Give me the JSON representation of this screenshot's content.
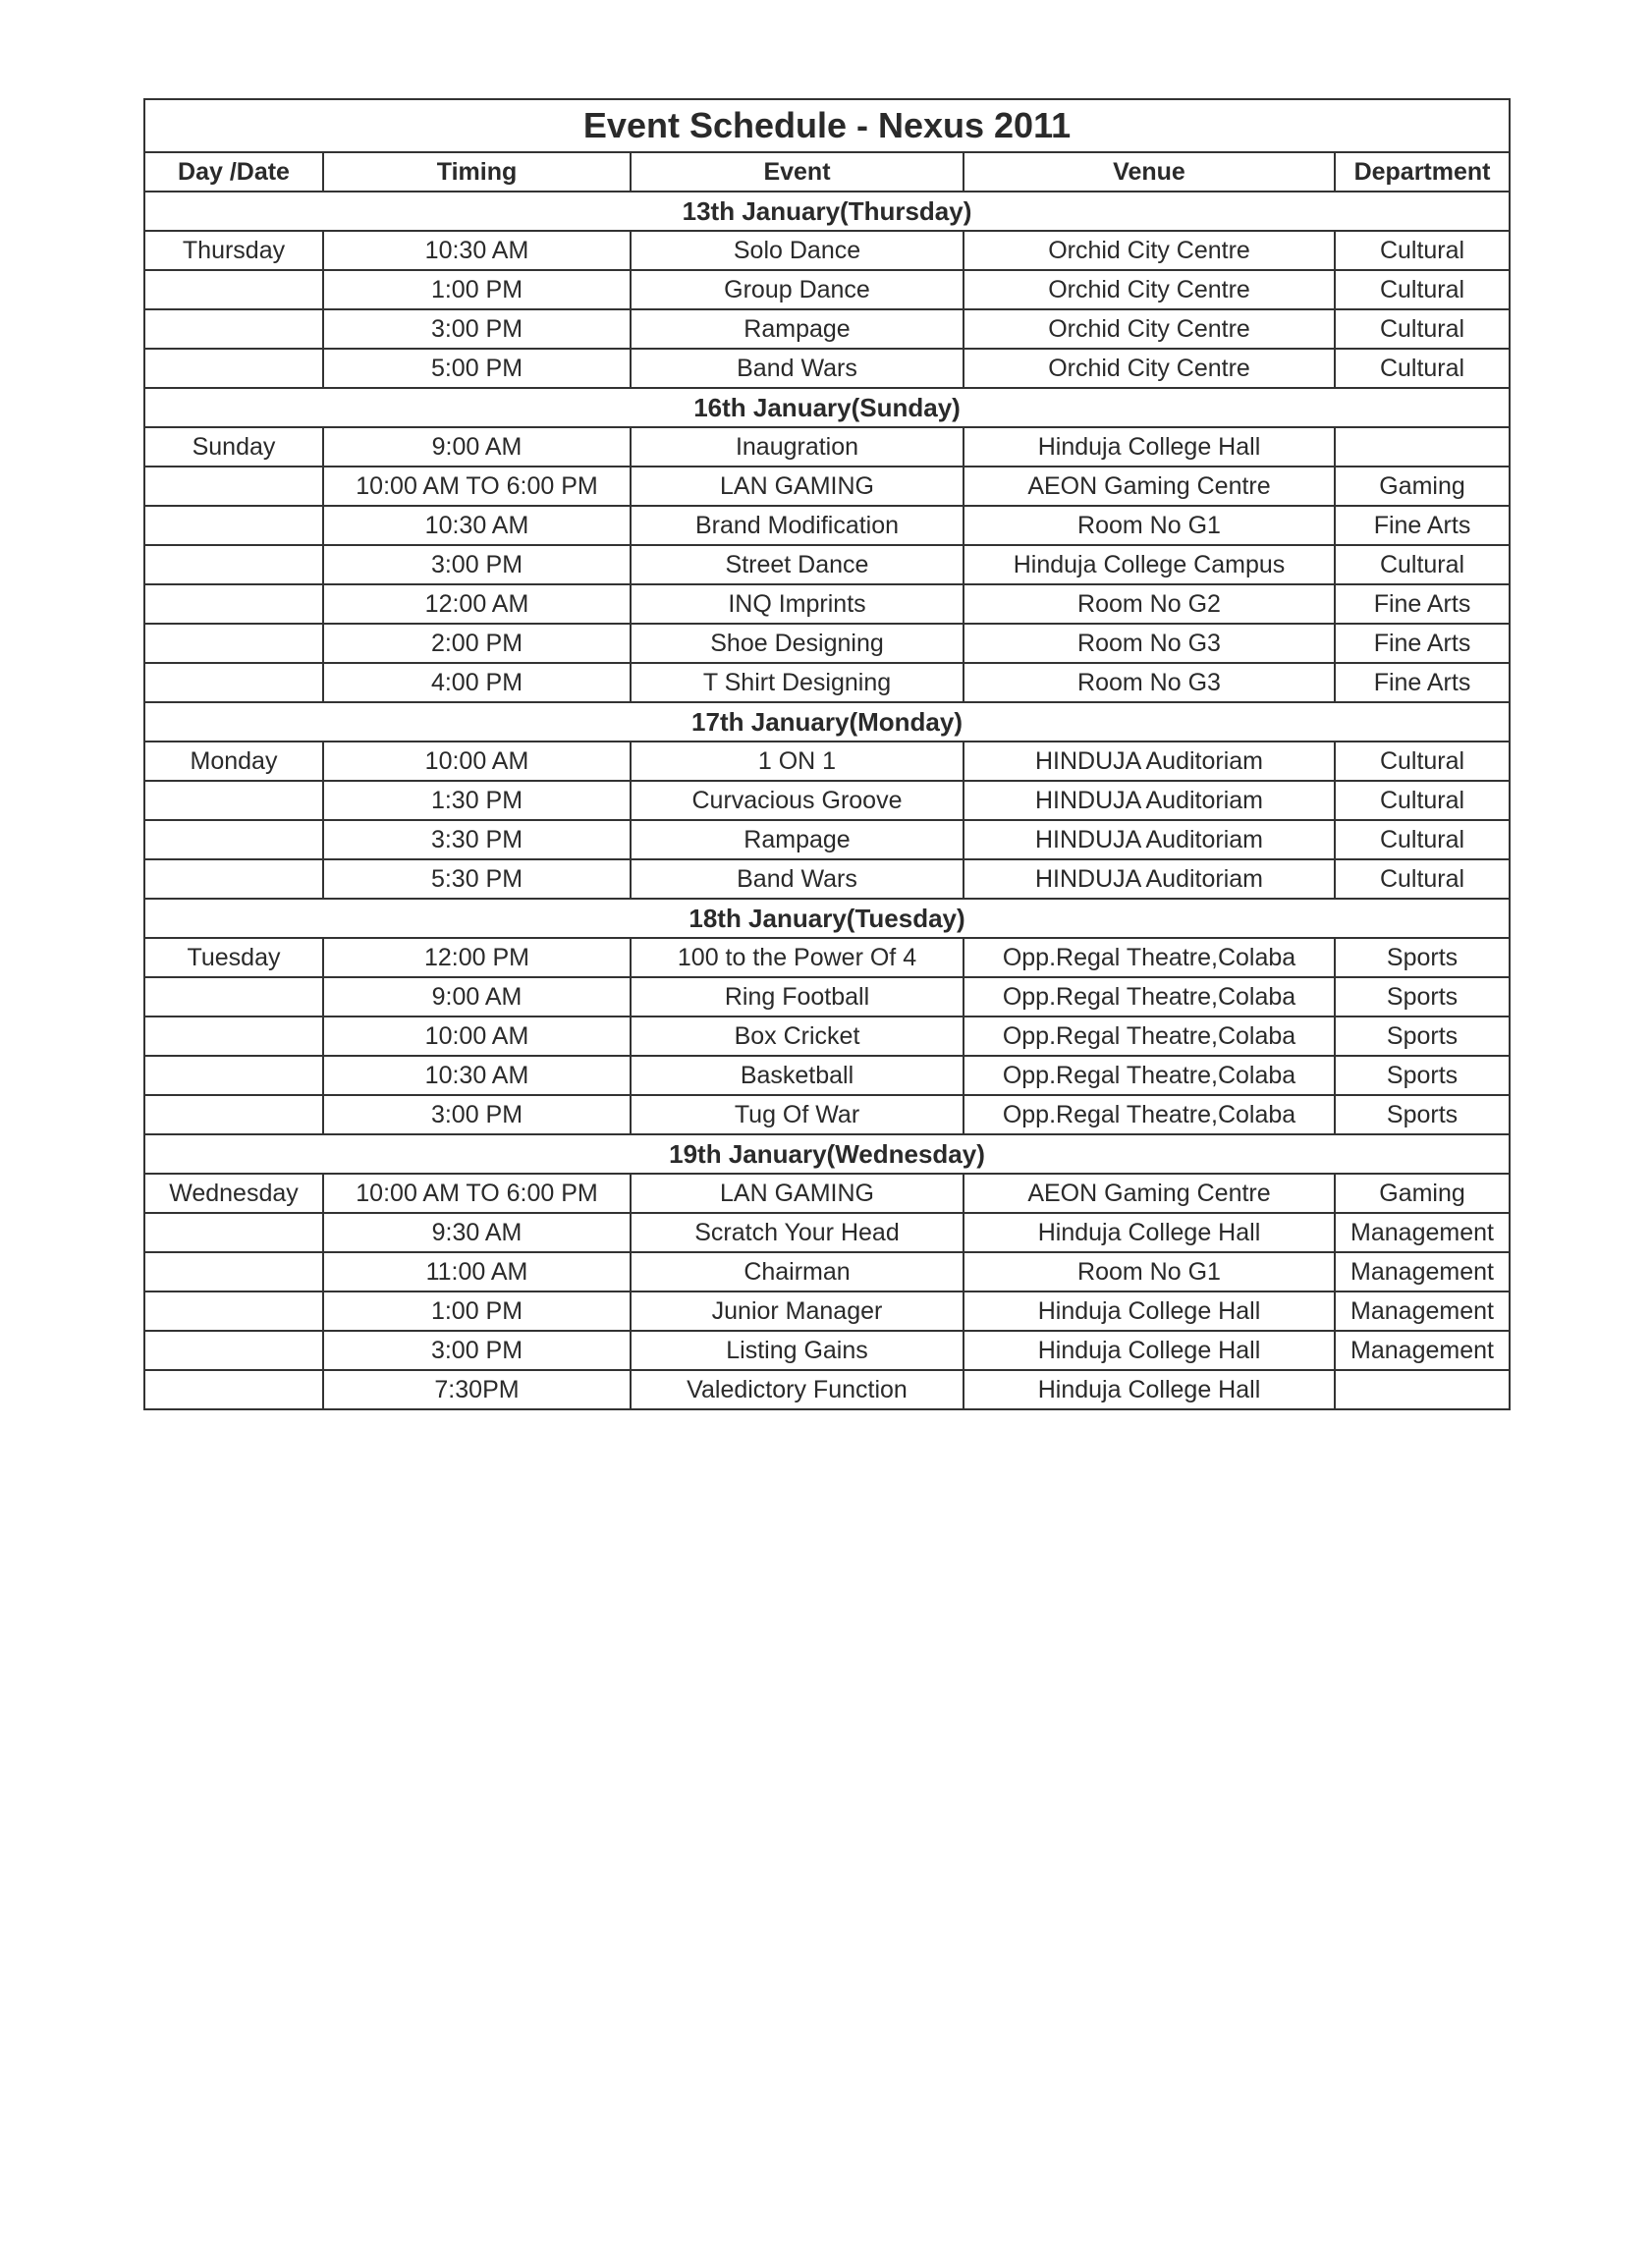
{
  "title": "Event Schedule - Nexus 2011",
  "headers": [
    "Day /Date",
    "Timing",
    "Event",
    "Venue",
    "Department"
  ],
  "days": [
    {
      "date": "13th January(Thursday)",
      "rows": [
        [
          "Thursday",
          "10:30 AM",
          "Solo Dance",
          "Orchid City Centre",
          "Cultural"
        ],
        [
          "",
          "1:00 PM",
          "Group Dance",
          "Orchid City Centre",
          "Cultural"
        ],
        [
          "",
          "3:00 PM",
          "Rampage",
          "Orchid City Centre",
          "Cultural"
        ],
        [
          "",
          "5:00 PM",
          "Band Wars",
          "Orchid City Centre",
          "Cultural"
        ]
      ]
    },
    {
      "date": "16th January(Sunday)",
      "rows": [
        [
          "Sunday",
          "9:00 AM",
          "Inaugration",
          "Hinduja College Hall",
          ""
        ],
        [
          "",
          "10:00 AM TO 6:00 PM",
          "LAN GAMING",
          "AEON Gaming Centre",
          "Gaming"
        ],
        [
          "",
          "10:30 AM",
          "Brand Modification",
          "Room No G1",
          "Fine Arts"
        ],
        [
          "",
          "3:00 PM",
          "Street Dance",
          "Hinduja College Campus",
          "Cultural"
        ],
        [
          "",
          "12:00 AM",
          "INQ Imprints",
          "Room No G2",
          "Fine Arts"
        ],
        [
          "",
          "2:00 PM",
          "Shoe Designing",
          "Room No G3",
          "Fine Arts"
        ],
        [
          "",
          "4:00 PM",
          "T Shirt Designing",
          "Room No G3",
          "Fine Arts"
        ]
      ]
    },
    {
      "date": "17th January(Monday)",
      "rows": [
        [
          "Monday",
          "10:00 AM",
          "1 ON 1",
          "HINDUJA Auditoriam",
          "Cultural"
        ],
        [
          "",
          "1:30 PM",
          "Curvacious Groove",
          "HINDUJA Auditoriam",
          "Cultural"
        ],
        [
          "",
          "3:30 PM",
          "Rampage",
          "HINDUJA Auditoriam",
          "Cultural"
        ],
        [
          "",
          "5:30 PM",
          "Band Wars",
          "HINDUJA Auditoriam",
          "Cultural"
        ]
      ]
    },
    {
      "date": "18th January(Tuesday)",
      "rows": [
        [
          "Tuesday",
          "12:00 PM",
          "100 to the Power Of 4",
          "Opp.Regal Theatre,Colaba",
          "Sports"
        ],
        [
          "",
          "9:00 AM",
          "Ring Football",
          "Opp.Regal Theatre,Colaba",
          "Sports"
        ],
        [
          "",
          "10:00 AM",
          "Box Cricket",
          "Opp.Regal Theatre,Colaba",
          "Sports"
        ],
        [
          "",
          "10:30 AM",
          "Basketball",
          "Opp.Regal Theatre,Colaba",
          "Sports"
        ],
        [
          "",
          "3:00 PM",
          "Tug Of War",
          "Opp.Regal Theatre,Colaba",
          "Sports"
        ]
      ]
    },
    {
      "date": "19th January(Wednesday)",
      "rows": [
        [
          "Wednesday",
          "10:00 AM TO 6:00 PM",
          "LAN GAMING",
          "AEON Gaming Centre",
          "Gaming"
        ],
        [
          "",
          "9:30 AM",
          "Scratch Your Head",
          "Hinduja College Hall",
          "Management"
        ],
        [
          "",
          "11:00 AM",
          "Chairman",
          "Room No G1",
          "Management"
        ],
        [
          "",
          "1:00 PM",
          "Junior Manager",
          "Hinduja College Hall",
          "Management"
        ],
        [
          "",
          "3:00 PM",
          "Listing Gains",
          "Hinduja College Hall",
          "Management"
        ],
        [
          "",
          "7:30PM",
          "Valedictory Function",
          "Hinduja College Hall",
          ""
        ]
      ]
    }
  ]
}
